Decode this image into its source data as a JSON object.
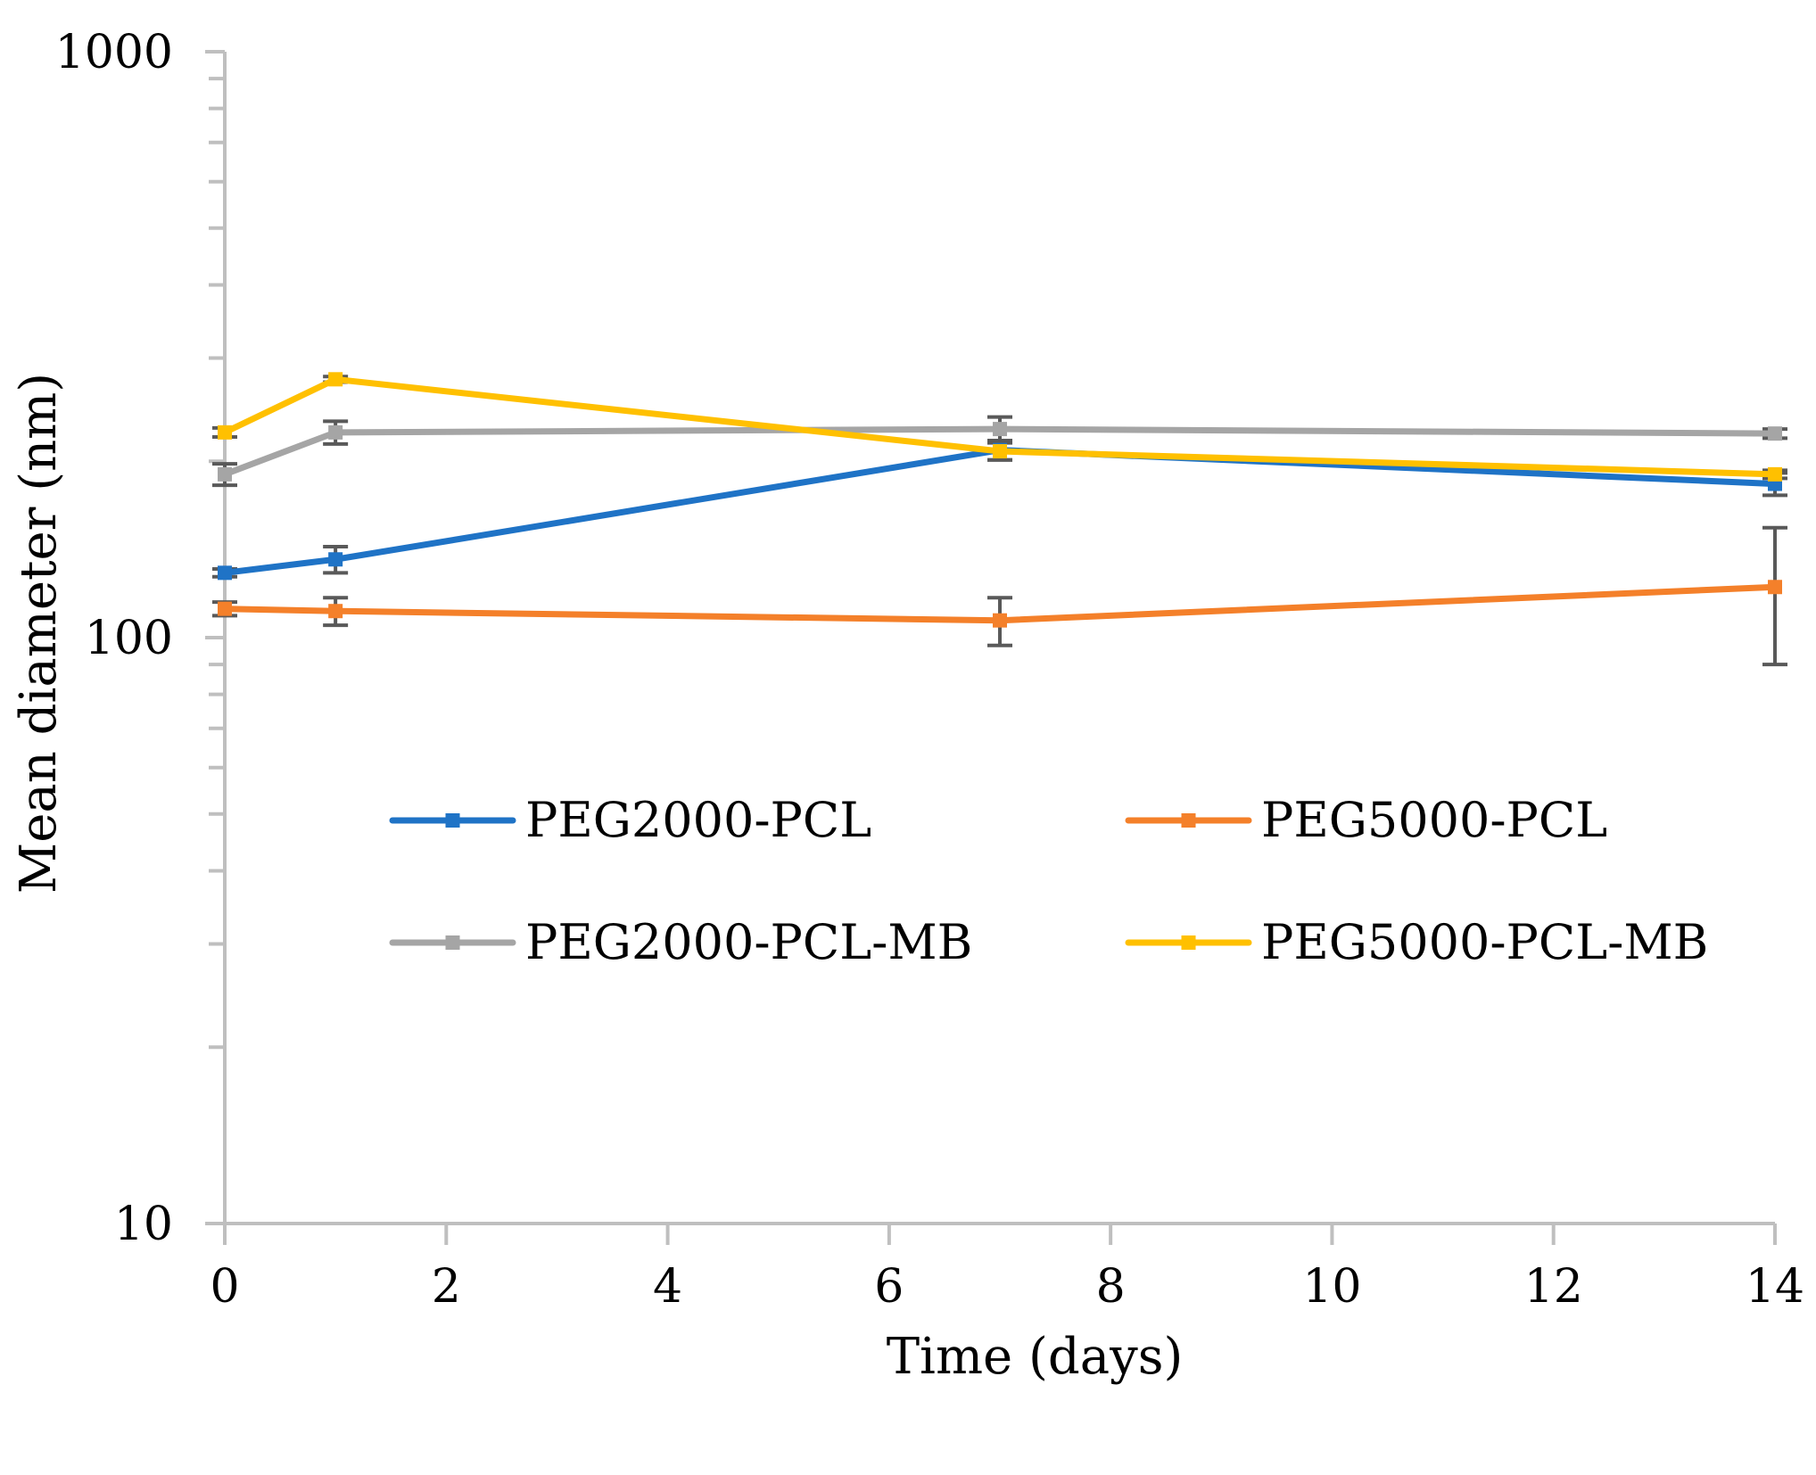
{
  "chart_data": {
    "type": "line",
    "title": "",
    "xlabel": "Time (days)",
    "ylabel": "Mean diameter (nm)",
    "y_scale": "log",
    "xlim": [
      0,
      14
    ],
    "ylim": [
      10,
      1000
    ],
    "x_ticks": [
      0,
      2,
      4,
      6,
      8,
      10,
      12,
      14
    ],
    "y_ticks": [
      10,
      100,
      1000
    ],
    "legend_position": "center",
    "series": [
      {
        "name": "PEG2000-PCL",
        "color": "#1F73C6",
        "x": [
          0,
          1,
          7,
          14
        ],
        "values": [
          129,
          136,
          209,
          183
        ],
        "errors": [
          2,
          7,
          8,
          8
        ]
      },
      {
        "name": "PEG5000-PCL",
        "color": "#F4802A",
        "x": [
          0,
          1,
          7,
          14
        ],
        "values": [
          112,
          111,
          107,
          122
        ],
        "errors": [
          3,
          6,
          10,
          32
        ]
      },
      {
        "name": "PEG2000-PCL-MB",
        "color": "#A5A5A5",
        "x": [
          0,
          1,
          7,
          14
        ],
        "values": [
          190,
          224,
          227,
          223
        ],
        "errors": [
          8,
          10,
          11,
          4
        ]
      },
      {
        "name": "PEG5000-PCL-MB",
        "color": "#FFC000",
        "x": [
          0,
          1,
          7,
          14
        ],
        "values": [
          224,
          276,
          208,
          190
        ],
        "errors": [
          4,
          3,
          7,
          3
        ]
      }
    ]
  }
}
